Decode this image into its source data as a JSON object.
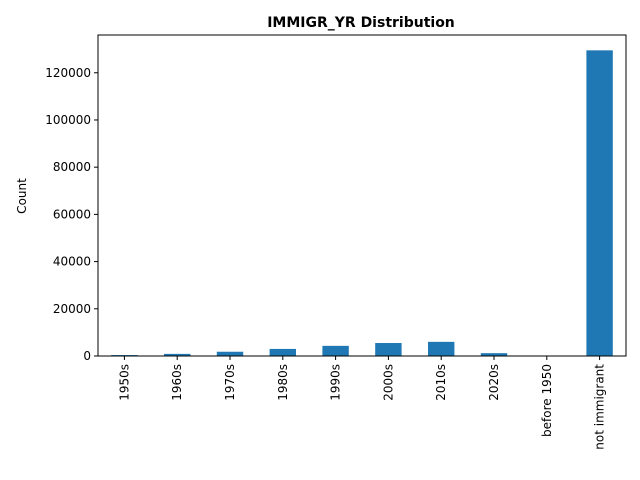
{
  "chart_data": {
    "type": "bar",
    "title": "IMMIGR_YR Distribution",
    "xlabel": "",
    "ylabel": "Count",
    "categories": [
      "1950s",
      "1960s",
      "1970s",
      "1980s",
      "1990s",
      "2000s",
      "2010s",
      "2020s",
      "before 1950",
      "not immigrant"
    ],
    "values": [
      400,
      900,
      1800,
      3000,
      4300,
      5500,
      6000,
      1200,
      150,
      129500
    ],
    "ylim": [
      0,
      136000
    ],
    "yticks": [
      0,
      20000,
      40000,
      60000,
      80000,
      100000,
      120000
    ],
    "grid": false,
    "legend": "none",
    "bar_color": "#1f77b4"
  }
}
